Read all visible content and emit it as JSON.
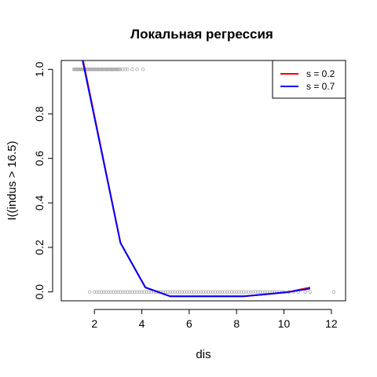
{
  "chart_data": {
    "type": "scatter",
    "title": "Локальная регрессия",
    "xlabel": "dis",
    "ylabel": "I((indus > 16.5)",
    "xlim": [
      0.6,
      12.6
    ],
    "ylim": [
      -0.04,
      1.04
    ],
    "x_ticks": [
      2,
      4,
      6,
      8,
      10,
      12
    ],
    "y_ticks": [
      0.0,
      0.2,
      0.4,
      0.6,
      0.8,
      1.0
    ],
    "x_tick_labels": [
      "2",
      "4",
      "6",
      "8",
      "10",
      "12"
    ],
    "y_tick_labels": [
      "0.0",
      "0.2",
      "0.4",
      "0.6",
      "0.8",
      "1.0"
    ],
    "grid": false,
    "legend_position": "top-right",
    "points": {
      "color": "#a6a6a6",
      "y1_x": [
        1.13,
        1.17,
        1.2,
        1.24,
        1.28,
        1.32,
        1.36,
        1.4,
        1.44,
        1.48,
        1.52,
        1.56,
        1.6,
        1.64,
        1.68,
        1.72,
        1.76,
        1.8,
        1.84,
        1.88,
        1.92,
        1.96,
        2.0,
        2.04,
        2.08,
        2.12,
        2.16,
        2.2,
        2.24,
        2.28,
        2.32,
        2.36,
        2.4,
        2.44,
        2.48,
        2.52,
        2.56,
        2.6,
        2.64,
        2.68,
        2.72,
        2.76,
        2.8,
        2.84,
        2.88,
        2.92,
        2.96,
        3.0,
        3.05,
        3.1,
        3.2,
        3.3,
        3.4,
        3.6,
        3.8,
        4.05
      ],
      "y0_x": [
        1.8,
        2.0,
        2.1,
        2.2,
        2.3,
        2.4,
        2.5,
        2.6,
        2.7,
        2.8,
        2.9,
        3.0,
        3.1,
        3.2,
        3.3,
        3.4,
        3.5,
        3.6,
        3.7,
        3.8,
        3.9,
        4.0,
        4.1,
        4.2,
        4.3,
        4.4,
        4.5,
        4.6,
        4.7,
        4.8,
        4.9,
        5.0,
        5.1,
        5.2,
        5.3,
        5.4,
        5.5,
        5.6,
        5.7,
        5.8,
        5.9,
        6.0,
        6.1,
        6.2,
        6.3,
        6.4,
        6.5,
        6.6,
        6.7,
        6.8,
        6.9,
        7.0,
        7.1,
        7.2,
        7.3,
        7.4,
        7.5,
        7.6,
        7.7,
        7.8,
        7.9,
        8.0,
        8.1,
        8.2,
        8.3,
        8.4,
        8.5,
        8.6,
        8.7,
        8.8,
        8.9,
        9.0,
        9.1,
        9.2,
        9.3,
        9.4,
        9.5,
        9.6,
        9.7,
        9.8,
        9.9,
        10.0,
        10.2,
        10.4,
        10.6,
        10.9,
        11.1,
        12.1
      ]
    },
    "series": [
      {
        "name": "s = 0.2",
        "color": "#ff0000",
        "x": [
          1.5,
          3.1,
          4.15,
          5.2,
          6.2,
          7.2,
          8.3,
          9.3,
          10.2,
          11.1
        ],
        "y": [
          1.05,
          0.22,
          0.02,
          -0.02,
          -0.02,
          -0.02,
          -0.02,
          -0.01,
          0.0,
          0.02
        ]
      },
      {
        "name": "s = 0.7",
        "color": "#0000ff",
        "x": [
          1.5,
          3.1,
          4.15,
          5.2,
          6.2,
          7.2,
          8.3,
          9.3,
          10.2,
          11.1
        ],
        "y": [
          1.04,
          0.22,
          0.02,
          -0.02,
          -0.02,
          -0.02,
          -0.02,
          -0.01,
          0.0,
          0.015
        ]
      }
    ]
  }
}
